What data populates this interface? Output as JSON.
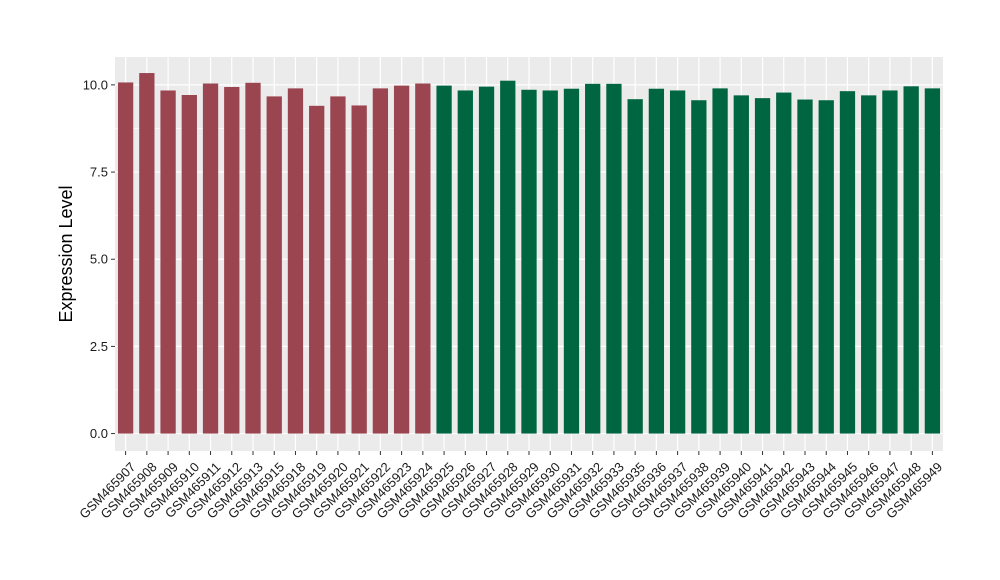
{
  "chart_data": {
    "type": "bar",
    "ylabel": "Expression Level",
    "xlabel": "",
    "ylim": [
      -0.5,
      10.8
    ],
    "yticks": [
      0.0,
      2.5,
      5.0,
      7.5,
      10.0
    ],
    "ytick_labels": [
      "0.0",
      "2.5",
      "5.0",
      "7.5",
      "10.0"
    ],
    "grid": true,
    "legend": "none",
    "colors": {
      "group1": "#9a4550",
      "group2": "#006642",
      "panel": "#ebebeb",
      "grid": "#ffffff"
    },
    "categories": [
      "GSM465907",
      "GSM465908",
      "GSM465909",
      "GSM465910",
      "GSM465911",
      "GSM465912",
      "GSM465913",
      "GSM465915",
      "GSM465918",
      "GSM465919",
      "GSM465920",
      "GSM465921",
      "GSM465922",
      "GSM465923",
      "GSM465924",
      "GSM465925",
      "GSM465926",
      "GSM465927",
      "GSM465928",
      "GSM465929",
      "GSM465930",
      "GSM465931",
      "GSM465932",
      "GSM465933",
      "GSM465935",
      "GSM465936",
      "GSM465937",
      "GSM465938",
      "GSM465939",
      "GSM465940",
      "GSM465941",
      "GSM465942",
      "GSM465943",
      "GSM465944",
      "GSM465945",
      "GSM465946",
      "GSM465947",
      "GSM465948",
      "GSM465949"
    ],
    "values": [
      10.07,
      10.34,
      9.84,
      9.71,
      10.04,
      9.94,
      10.06,
      9.67,
      9.9,
      9.4,
      9.67,
      9.41,
      9.9,
      9.98,
      10.04,
      9.98,
      9.84,
      9.95,
      10.12,
      9.86,
      9.84,
      9.89,
      10.03,
      10.03,
      9.59,
      9.89,
      9.84,
      9.56,
      9.9,
      9.7,
      9.62,
      9.78,
      9.58,
      9.56,
      9.82,
      9.7,
      9.84,
      9.96,
      9.9
    ],
    "group": [
      "group1",
      "group1",
      "group1",
      "group1",
      "group1",
      "group1",
      "group1",
      "group1",
      "group1",
      "group1",
      "group1",
      "group1",
      "group1",
      "group1",
      "group1",
      "group2",
      "group2",
      "group2",
      "group2",
      "group2",
      "group2",
      "group2",
      "group2",
      "group2",
      "group2",
      "group2",
      "group2",
      "group2",
      "group2",
      "group2",
      "group2",
      "group2",
      "group2",
      "group2",
      "group2",
      "group2",
      "group2",
      "group2",
      "group2"
    ]
  }
}
